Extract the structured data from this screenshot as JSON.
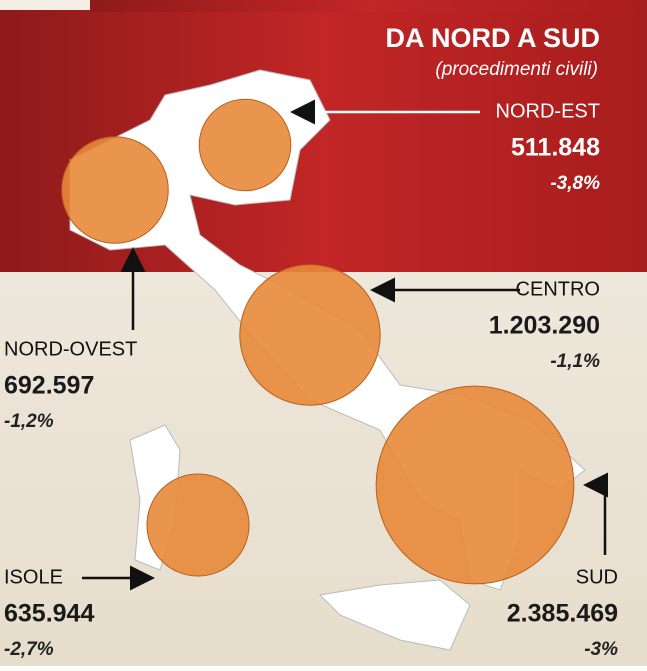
{
  "title": "DA NORD A SUD",
  "subtitle": "(procedimenti civili)",
  "regions": [
    {
      "name": "NORD-EST",
      "value": 511848,
      "value_label": "511.848",
      "change": "-3,8%"
    },
    {
      "name": "NORD-OVEST",
      "value": 692597,
      "value_label": "692.597",
      "change": "-1,2%"
    },
    {
      "name": "CENTRO",
      "value": 1203290,
      "value_label": "1.203.290",
      "change": "-1,1%"
    },
    {
      "name": "SUD",
      "value": 2385469,
      "value_label": "2.385.469",
      "change": "-3%"
    },
    {
      "name": "ISOLE",
      "value": 635944,
      "value_label": "635.944",
      "change": "-2,7%"
    }
  ]
}
